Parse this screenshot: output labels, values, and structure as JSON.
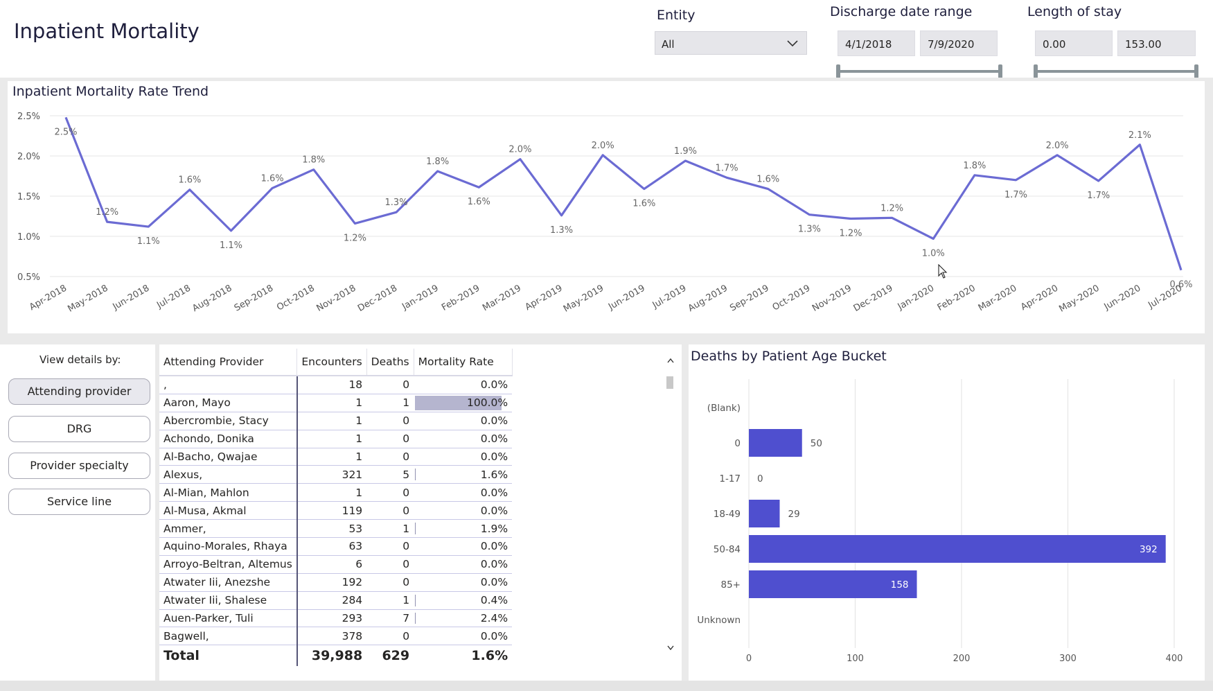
{
  "header": {
    "title": "Inpatient Mortality",
    "entity_label": "Entity",
    "entity_value": "All",
    "discharge_label": "Discharge date range",
    "discharge_start": "4/1/2018",
    "discharge_end": "7/9/2020",
    "los_label": "Length of stay",
    "los_min": "0.00",
    "los_max": "153.00"
  },
  "trend": {
    "title": "Inpatient Mortality Rate Trend"
  },
  "chart_data": [
    {
      "type": "line",
      "title": "Inpatient Mortality Rate Trend",
      "y_ticks": [
        "2.5%",
        "2.0%",
        "1.5%",
        "1.0%",
        "0.5%"
      ],
      "ylim": [
        0.5,
        2.5
      ],
      "grid": true,
      "color": "#6b6bd3",
      "x": [
        "Apr-2018",
        "May-2018",
        "Jun-2018",
        "Jul-2018",
        "Aug-2018",
        "Sep-2018",
        "Oct-2018",
        "Nov-2018",
        "Dec-2018",
        "Jan-2019",
        "Feb-2019",
        "Mar-2019",
        "Apr-2019",
        "May-2019",
        "Jun-2019",
        "Jul-2019",
        "Aug-2019",
        "Sep-2019",
        "Oct-2019",
        "Nov-2019",
        "Dec-2019",
        "Jan-2020",
        "Feb-2020",
        "Mar-2020",
        "Apr-2020",
        "May-2020",
        "Jun-2020",
        "Jul-2020"
      ],
      "values": [
        2.48,
        1.18,
        1.12,
        1.58,
        1.07,
        1.6,
        1.83,
        1.16,
        1.3,
        1.81,
        1.61,
        1.96,
        1.26,
        2.01,
        1.59,
        1.94,
        1.73,
        1.59,
        1.27,
        1.22,
        1.23,
        0.97,
        1.76,
        1.7,
        2.01,
        1.69,
        2.14,
        0.58
      ],
      "labels": [
        "2.5%",
        "1.2%",
        "1.1%",
        "1.6%",
        "1.1%",
        "1.6%",
        "1.8%",
        "1.2%",
        "1.3%",
        "1.8%",
        "1.6%",
        "2.0%",
        "1.3%",
        "2.0%",
        "1.6%",
        "1.9%",
        "1.7%",
        "1.6%",
        "1.3%",
        "1.2%",
        "1.2%",
        "1.0%",
        "1.8%",
        "1.7%",
        "2.0%",
        "1.7%",
        "2.1%",
        "0.6%"
      ],
      "label_pos": [
        "below",
        "above",
        "below",
        "above",
        "below",
        "above",
        "above",
        "below",
        "above",
        "above",
        "below",
        "above",
        "below",
        "above",
        "below",
        "above",
        "above",
        "above",
        "below",
        "below",
        "above",
        "below",
        "above",
        "below",
        "above",
        "below",
        "above",
        "below"
      ]
    },
    {
      "type": "bar",
      "orientation": "horizontal",
      "title": "Deaths by Patient Age Bucket",
      "categories": [
        "(Blank)",
        "0",
        "1-17",
        "18-49",
        "50-84",
        "85+",
        "Unknown"
      ],
      "values": [
        null,
        50,
        0,
        29,
        392,
        158,
        null
      ],
      "labels": [
        "",
        "50",
        "0",
        "29",
        "392",
        "158",
        ""
      ],
      "x_ticks": [
        "0",
        "100",
        "200",
        "300",
        "400"
      ],
      "xlim": [
        0,
        400
      ],
      "grid": true,
      "color": "#4f4fcf"
    }
  ],
  "view_details": {
    "label": "View details by:",
    "buttons": [
      "Attending provider",
      "DRG",
      "Provider specialty",
      "Service line"
    ],
    "active": 0
  },
  "table": {
    "columns": [
      "Attending Provider",
      "Encounters",
      "Deaths",
      "Mortality Rate"
    ],
    "rows": [
      {
        "name": ",",
        "enc": "18",
        "deaths": "0",
        "rate": "0.0%",
        "rate_value": 0.0
      },
      {
        "name": "Aaron, Mayo",
        "enc": "1",
        "deaths": "1",
        "rate": "100.0%",
        "rate_value": 100.0
      },
      {
        "name": "Abercrombie, Stacy",
        "enc": "1",
        "deaths": "0",
        "rate": "0.0%",
        "rate_value": 0.0
      },
      {
        "name": "Achondo, Donika",
        "enc": "1",
        "deaths": "0",
        "rate": "0.0%",
        "rate_value": 0.0
      },
      {
        "name": "Al-Bacho, Qwajae",
        "enc": "1",
        "deaths": "0",
        "rate": "0.0%",
        "rate_value": 0.0
      },
      {
        "name": "Alexus,",
        "enc": "321",
        "deaths": "5",
        "rate": "1.6%",
        "rate_value": 1.6
      },
      {
        "name": "Al-Mian, Mahlon",
        "enc": "1",
        "deaths": "0",
        "rate": "0.0%",
        "rate_value": 0.0
      },
      {
        "name": "Al-Musa, Akmal",
        "enc": "119",
        "deaths": "0",
        "rate": "0.0%",
        "rate_value": 0.0
      },
      {
        "name": "Ammer,",
        "enc": "53",
        "deaths": "1",
        "rate": "1.9%",
        "rate_value": 1.9
      },
      {
        "name": "Aquino-Morales, Rhaya",
        "enc": "63",
        "deaths": "0",
        "rate": "0.0%",
        "rate_value": 0.0
      },
      {
        "name": "Arroyo-Beltran, Altemus",
        "enc": "6",
        "deaths": "0",
        "rate": "0.0%",
        "rate_value": 0.0
      },
      {
        "name": "Atwater Iii, Anezshe",
        "enc": "192",
        "deaths": "0",
        "rate": "0.0%",
        "rate_value": 0.0
      },
      {
        "name": "Atwater Iii, Shalese",
        "enc": "284",
        "deaths": "1",
        "rate": "0.4%",
        "rate_value": 0.4
      },
      {
        "name": "Auen-Parker, Tuli",
        "enc": "293",
        "deaths": "7",
        "rate": "2.4%",
        "rate_value": 2.4
      },
      {
        "name": "Bagwell,",
        "enc": "378",
        "deaths": "0",
        "rate": "0.0%",
        "rate_value": 0.0
      }
    ],
    "total": {
      "name": "Total",
      "enc": "39,988",
      "deaths": "629",
      "rate": "1.6%"
    }
  },
  "age_chart": {
    "title": "Deaths by Patient Age Bucket"
  },
  "colors": {
    "line": "#6b6bd3",
    "bar": "#4f4fcf",
    "rate_bar": "#b5b5cf",
    "title_text": "#1e1e3c"
  }
}
